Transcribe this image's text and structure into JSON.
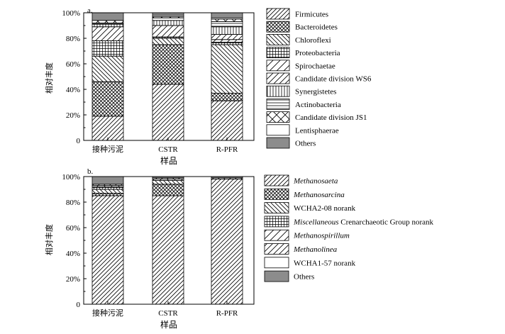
{
  "chart_data": [
    {
      "panel_label": "a.",
      "type": "bar",
      "stacked": true,
      "ylabel": "相对丰度",
      "xlabel": "样品",
      "ylim": [
        0,
        100
      ],
      "yticks": [
        "0",
        "20%",
        "40%",
        "60%",
        "80%",
        "100%"
      ],
      "categories": [
        "接种污泥",
        "CSTR",
        "R-PFR"
      ],
      "series": [
        {
          "name": "Firmicutes",
          "pattern": "diag",
          "values": [
            19,
            44,
            31
          ]
        },
        {
          "name": "Bacteroidetes",
          "pattern": "crosshatch",
          "values": [
            27,
            31,
            6
          ]
        },
        {
          "name": "Chloroflexi",
          "pattern": "backdiag",
          "values": [
            20,
            5,
            38
          ]
        },
        {
          "name": "Proteobacteria",
          "pattern": "grid",
          "values": [
            12,
            1,
            2
          ]
        },
        {
          "name": "Spirochaetae",
          "pattern": "diag-sparse",
          "values": [
            0,
            0,
            2
          ]
        },
        {
          "name": "Candidate division WS6",
          "pattern": "diag-wide",
          "values": [
            11,
            9,
            4
          ]
        },
        {
          "name": "Synergistetes",
          "pattern": "vertical",
          "values": [
            2,
            4,
            6
          ]
        },
        {
          "name": "Actinobacteria",
          "pattern": "horizontal",
          "values": [
            1,
            2,
            4
          ]
        },
        {
          "name": "Candidate division JS1",
          "pattern": "cross-sparse",
          "values": [
            2,
            1,
            2
          ]
        },
        {
          "name": "Lentisphaerae",
          "pattern": "empty",
          "values": [
            0,
            1,
            1
          ]
        },
        {
          "name": "Others",
          "pattern": "gray",
          "values": [
            6,
            2,
            4
          ]
        }
      ]
    },
    {
      "panel_label": "b.",
      "type": "bar",
      "stacked": true,
      "ylabel": "相对丰度",
      "xlabel": "样品",
      "ylim": [
        0,
        100
      ],
      "yticks": [
        "0",
        "20%",
        "40%",
        "60%",
        "80%",
        "100%"
      ],
      "categories": [
        "接种污泥",
        "CSTR",
        "R-PFR"
      ],
      "series": [
        {
          "name": "Methanosaeta",
          "italic_part": "Methanosaeta",
          "rest": "",
          "pattern": "diag",
          "values": [
            85,
            85,
            98
          ]
        },
        {
          "name": "Methanosarcina",
          "italic_part": "Methanosarcina",
          "rest": "",
          "pattern": "crosshatch",
          "values": [
            2,
            9,
            0
          ]
        },
        {
          "name": "WCHA2-08 norank",
          "italic_part": "",
          "rest": "WCHA2-08 norank",
          "pattern": "backdiag",
          "values": [
            3,
            3,
            0
          ]
        },
        {
          "name": "Miscellaneous Crenarchaeotic Group norank",
          "italic_part": "Miscellaneous",
          "rest": " Crenarchaeotic Group norank",
          "pattern": "grid",
          "values": [
            2,
            0,
            0
          ]
        },
        {
          "name": "Methanospirillum",
          "italic_part": "Methanospirillum",
          "rest": "",
          "pattern": "diag-sparse",
          "values": [
            1,
            1,
            0
          ]
        },
        {
          "name": "Methanolinea",
          "italic_part": "Methanolinea",
          "rest": "",
          "pattern": "diag-wide",
          "values": [
            1,
            1,
            1
          ]
        },
        {
          "name": "WCHA1-57 norank",
          "italic_part": "",
          "rest": "WCHA1-57 norank",
          "pattern": "empty",
          "values": [
            0,
            0,
            0
          ]
        },
        {
          "name": "Others",
          "italic_part": "",
          "rest": "Others",
          "pattern": "gray",
          "values": [
            6,
            1,
            1
          ]
        }
      ]
    }
  ]
}
